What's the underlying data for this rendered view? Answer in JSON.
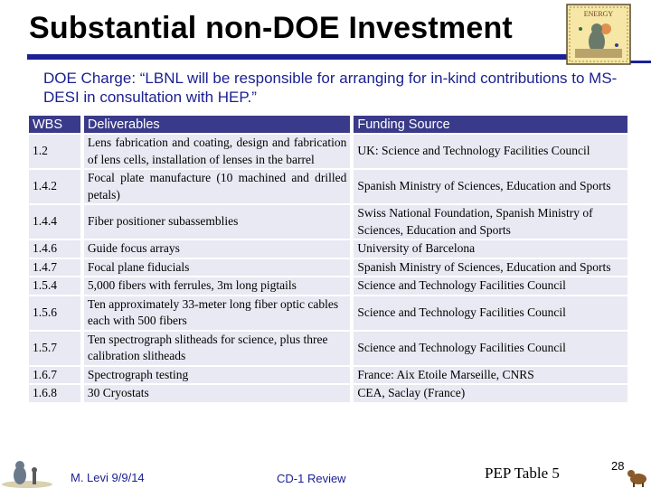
{
  "title": "Substantial non-DOE Investment",
  "charge": "DOE Charge: “LBNL will be responsible for arranging for in-kind contributions to MS-DESI in consultation with HEP.”",
  "table": {
    "headers": {
      "wbs": "WBS",
      "deliverables": "Deliverables",
      "funding": "Funding Source"
    },
    "rows": [
      {
        "wbs": "1.2",
        "deliverable": "Lens fabrication and coating, design and fabrication of lens cells, installation of lenses in the barrel",
        "funding": "UK: Science and Technology Facilities Council"
      },
      {
        "wbs": "1.4.2",
        "deliverable": "Focal plate manufacture (10 machined and drilled petals)",
        "funding": "Spanish Ministry of Sciences, Education and Sports"
      },
      {
        "wbs": "1.4.4",
        "deliverable": "Fiber positioner subassemblies",
        "funding": "Swiss National Foundation, Spanish Ministry of Sciences, Education and Sports"
      },
      {
        "wbs": "1.4.6",
        "deliverable": "Guide focus arrays",
        "funding": "University of Barcelona"
      },
      {
        "wbs": "1.4.7",
        "deliverable": "Focal plane fiducials",
        "funding": "Spanish Ministry of Sciences, Education and Sports"
      },
      {
        "wbs": "1.5.4",
        "deliverable": "5,000 fibers with ferrules, 3m long pigtails",
        "funding": "Science and Technology Facilities Council"
      },
      {
        "wbs": "1.5.6",
        "deliverable": "Ten approximately 33-meter long fiber optic cables each with 500 fibers",
        "funding": "Science and Technology Facilities Council"
      },
      {
        "wbs": "1.5.7",
        "deliverable": "Ten spectrograph slitheads for science, plus three calibration slitheads",
        "funding": "Science and Technology Facilities Council"
      },
      {
        "wbs": "1.6.7",
        "deliverable": "Spectrograph testing",
        "funding": "France: Aix Etoile Marseille, CNRS"
      },
      {
        "wbs": "1.6.8",
        "deliverable": "30 Cryostats",
        "funding": "CEA, Saclay (France)"
      }
    ]
  },
  "footer": {
    "author_date": "M. Levi 9/9/14",
    "review": "CD-1 Review",
    "pep_table": "PEP Table 5",
    "page_number": "28"
  },
  "logo": {
    "text": "ENERGY",
    "icon": "energy-logo-icon"
  },
  "colors": {
    "accent": "#1a2196",
    "header_bg": "#3a3a8a",
    "row_bg": "#e9e9f3",
    "charge_text": "#1a1f90"
  }
}
